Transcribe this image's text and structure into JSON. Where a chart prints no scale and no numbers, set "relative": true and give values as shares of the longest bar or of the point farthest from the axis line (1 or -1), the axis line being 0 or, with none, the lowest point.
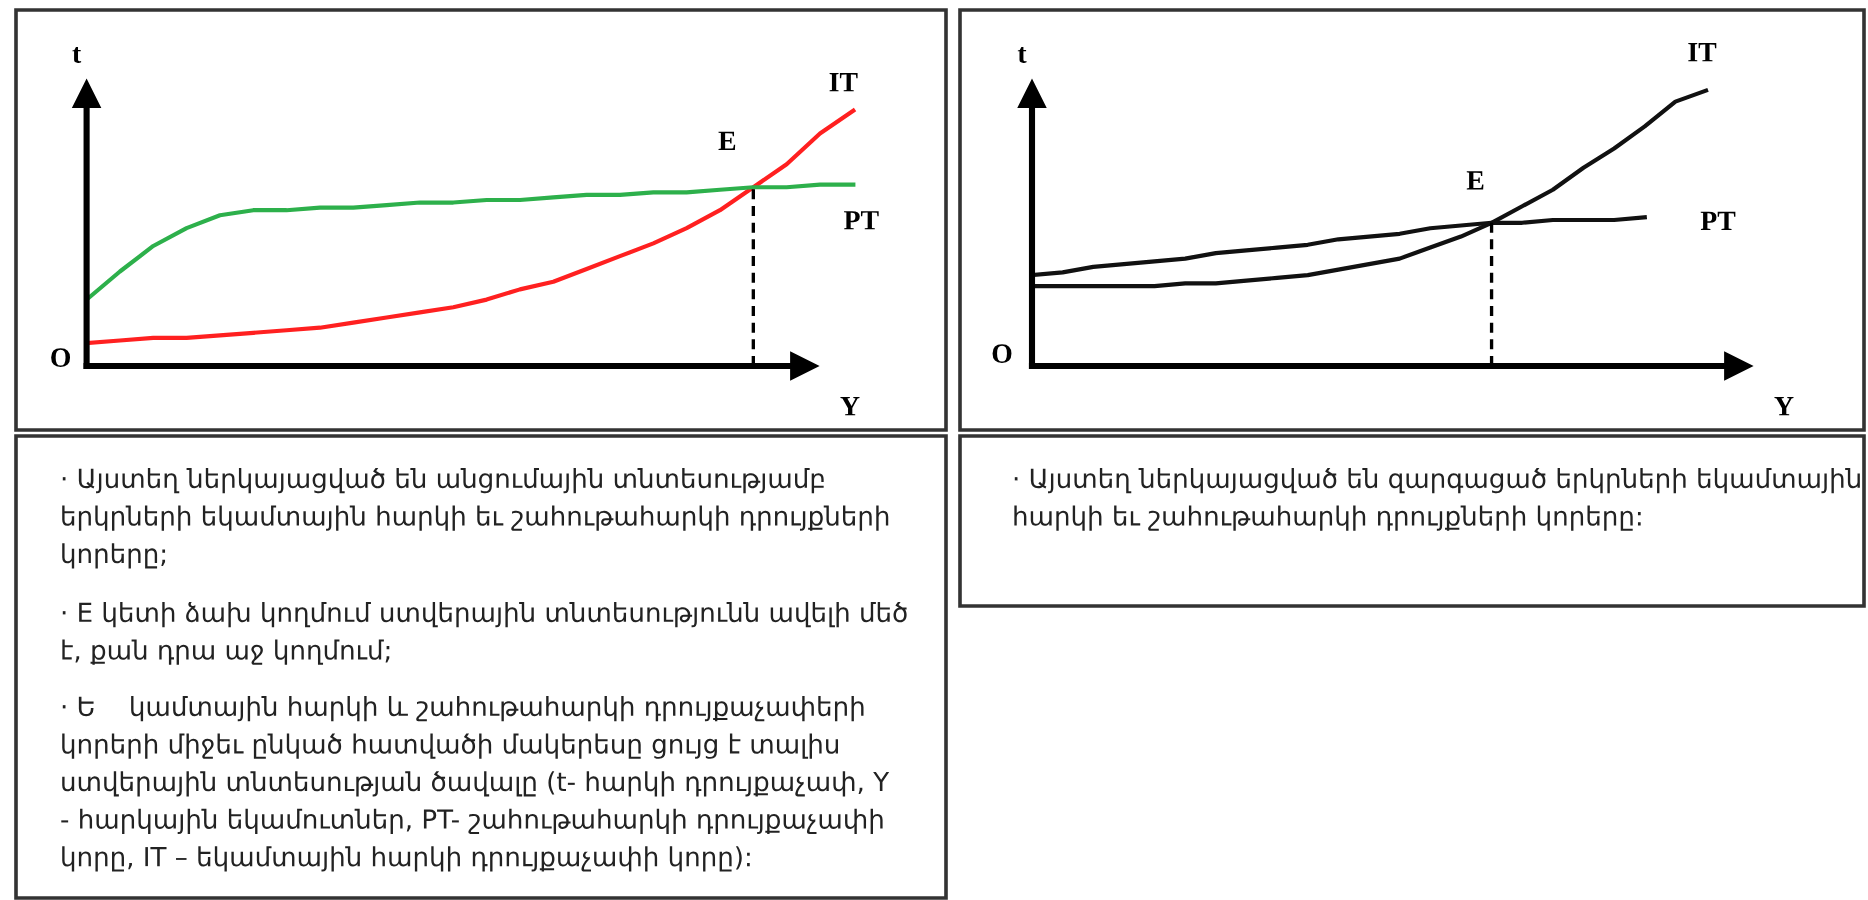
{
  "chart_data": [
    {
      "type": "line",
      "relative": true,
      "xlabel": "Y",
      "ylabel": "t",
      "categories": [
        null,
        null,
        null,
        null,
        null,
        null,
        null,
        null,
        null,
        null,
        null,
        null,
        null,
        null,
        null,
        null,
        null,
        null,
        null,
        null,
        null,
        null,
        null,
        null
      ],
      "series": [
        {
          "name": "IT",
          "color": "#ff2020",
          "values": [
            0.09,
            0.1,
            0.11,
            0.11,
            0.12,
            0.13,
            0.14,
            0.15,
            0.17,
            0.19,
            0.21,
            0.23,
            0.26,
            0.3,
            0.33,
            0.38,
            0.43,
            0.48,
            0.54,
            0.61,
            0.7,
            0.79,
            0.91,
            1.0
          ]
        },
        {
          "name": "PT",
          "color": "#2db04b",
          "values": [
            0.26,
            0.37,
            0.47,
            0.54,
            0.59,
            0.61,
            0.61,
            0.62,
            0.62,
            0.63,
            0.64,
            0.64,
            0.65,
            0.65,
            0.66,
            0.67,
            0.67,
            0.68,
            0.68,
            0.69,
            0.7,
            0.7,
            0.71,
            0.71
          ]
        }
      ],
      "annotations": [
        "E",
        "O",
        "· Այստեղ ներկայացված են անցումային տնտեսությամբ\nերկրների եկամտային հարկի եւ շահութահարկի դրույքների\nկորերը;",
        "· E կետի ձախ կողմում ստվերային տնտեսությունն ավելի մեծ\nէ, քան դրա աջ կողմում;",
        "· Ե    կամտային հարկի և շահութահարկի դրույքաչափերի\nկորերի միջեւ ընկած հատվածի մակերեսը ցույց է տալիս\nստվերային տնտեսության ծավալը (t- հարկի դրույքաչափ, Y\n- հարկային եկամուտներ, PT- շահութահարկի դրույքաչափի\nկորը, IT – եկամտային հարկի դրույքաչափի կորը):"
      ]
    },
    {
      "type": "line",
      "relative": true,
      "xlabel": "Y",
      "ylabel": "t",
      "categories": [
        null,
        null,
        null,
        null,
        null,
        null,
        null,
        null,
        null,
        null,
        null,
        null,
        null,
        null,
        null,
        null,
        null,
        null,
        null,
        null,
        null,
        null,
        null
      ],
      "series": [
        {
          "name": "IT",
          "color": "#111111",
          "values": [
            0.29,
            0.29,
            0.29,
            0.29,
            0.29,
            0.3,
            0.3,
            0.31,
            0.32,
            0.33,
            0.35,
            0.37,
            0.39,
            0.43,
            0.47,
            0.52,
            0.58,
            0.64,
            0.72,
            0.79,
            0.87,
            0.96,
            1.0
          ]
        },
        {
          "name": "PT",
          "color": "#111111",
          "values": [
            0.33,
            0.34,
            0.36,
            0.37,
            0.38,
            0.39,
            0.41,
            0.42,
            0.43,
            0.44,
            0.46,
            0.47,
            0.48,
            0.5,
            0.51,
            0.52,
            0.52,
            0.53,
            0.53,
            0.53,
            0.54,
            null,
            null
          ]
        }
      ],
      "annotations": [
        "E",
        "O",
        "· Այստեղ ներկայացված են զարգացած երկրների եկամտային\nհարկի եւ շահութահարկի դրույքների կորերը:"
      ]
    }
  ]
}
